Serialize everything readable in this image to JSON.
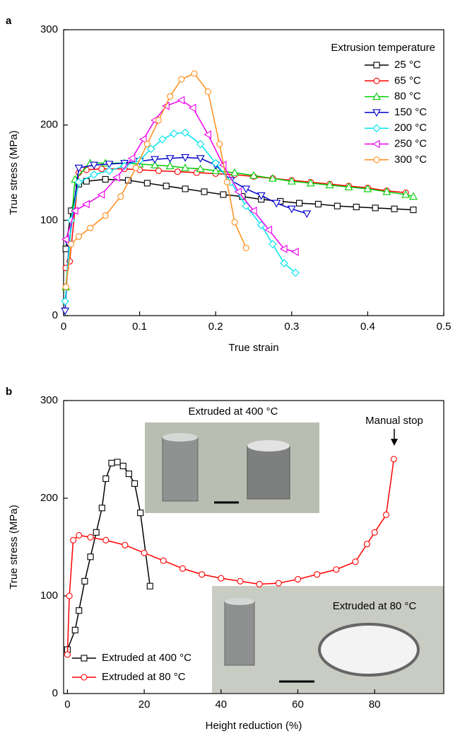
{
  "chart_data": [
    {
      "type": "line",
      "label": "a",
      "xlabel": "True strain",
      "ylabel": "True stress (MPa)",
      "xlim": [
        0,
        0.5
      ],
      "ylim": [
        0,
        300
      ],
      "xticks": [
        0,
        0.1,
        0.2,
        0.3,
        0.4,
        0.5
      ],
      "yticks": [
        0,
        100,
        200,
        300
      ],
      "legend_title": "Extrusion temperature",
      "legend": "upper right",
      "series": [
        {
          "name": "25 °C",
          "color": "#000000",
          "marker": "square",
          "x": [
            0.003,
            0.01,
            0.02,
            0.03,
            0.055,
            0.085,
            0.11,
            0.135,
            0.16,
            0.185,
            0.21,
            0.235,
            0.26,
            0.285,
            0.31,
            0.335,
            0.36,
            0.385,
            0.41,
            0.435,
            0.46
          ],
          "values": [
            70,
            110,
            138,
            141,
            143,
            142,
            139,
            136,
            133,
            130,
            127,
            125,
            122,
            120,
            118,
            117,
            115,
            114,
            113,
            112,
            111
          ]
        },
        {
          "name": "65 °C",
          "color": "#ff0000",
          "marker": "circle",
          "x": [
            0.003,
            0.008,
            0.02,
            0.03,
            0.05,
            0.08,
            0.1,
            0.125,
            0.15,
            0.175,
            0.2,
            0.225,
            0.25,
            0.275,
            0.3,
            0.325,
            0.35,
            0.375,
            0.4,
            0.425,
            0.45
          ],
          "values": [
            50,
            57,
            150,
            153,
            154,
            154,
            153,
            152,
            151,
            150,
            149,
            148,
            146,
            144,
            142,
            140,
            138,
            136,
            134,
            131,
            129
          ]
        },
        {
          "name": "80 °C",
          "color": "#00cc00",
          "marker": "triangle-up",
          "x": [
            0.003,
            0.015,
            0.035,
            0.055,
            0.08,
            0.1,
            0.12,
            0.14,
            0.16,
            0.18,
            0.2,
            0.225,
            0.25,
            0.275,
            0.3,
            0.325,
            0.35,
            0.375,
            0.4,
            0.425,
            0.45,
            0.46
          ],
          "values": [
            30,
            143,
            160,
            160,
            160,
            159,
            158,
            157,
            155,
            154,
            152,
            150,
            147,
            144,
            141,
            139,
            137,
            135,
            133,
            130,
            127,
            125
          ]
        },
        {
          "name": "150 °C",
          "color": "#0000cc",
          "marker": "triangle-down",
          "x": [
            0.002,
            0.007,
            0.02,
            0.04,
            0.06,
            0.08,
            0.1,
            0.12,
            0.14,
            0.16,
            0.18,
            0.2,
            0.22,
            0.24,
            0.26,
            0.28,
            0.3,
            0.32
          ],
          "values": [
            5,
            75,
            155,
            158,
            159,
            160,
            162,
            164,
            165,
            166,
            165,
            158,
            142,
            133,
            126,
            118,
            112,
            107
          ]
        },
        {
          "name": "200 °C",
          "color": "#00e5ee",
          "marker": "diamond",
          "x": [
            0.002,
            0.01,
            0.02,
            0.04,
            0.06,
            0.08,
            0.1,
            0.115,
            0.13,
            0.145,
            0.16,
            0.18,
            0.2,
            0.22,
            0.24,
            0.26,
            0.275,
            0.29,
            0.305
          ],
          "values": [
            15,
            100,
            140,
            148,
            152,
            157,
            163,
            175,
            185,
            191,
            192,
            180,
            160,
            140,
            115,
            95,
            75,
            55,
            45
          ]
        },
        {
          "name": "250 °C",
          "color": "#ee00ee",
          "marker": "triangle-left",
          "x": [
            0.003,
            0.015,
            0.03,
            0.05,
            0.07,
            0.09,
            0.105,
            0.12,
            0.135,
            0.155,
            0.17,
            0.19,
            0.21,
            0.23,
            0.25,
            0.27,
            0.29,
            0.305
          ],
          "values": [
            80,
            110,
            117,
            127,
            145,
            165,
            185,
            205,
            220,
            226,
            218,
            190,
            158,
            130,
            110,
            90,
            70,
            67
          ]
        },
        {
          "name": "300 °C",
          "color": "#ff8c1a",
          "marker": "circle",
          "x": [
            0.003,
            0.01,
            0.02,
            0.035,
            0.055,
            0.075,
            0.095,
            0.11,
            0.125,
            0.14,
            0.155,
            0.172,
            0.19,
            0.205,
            0.215,
            0.225,
            0.24
          ],
          "values": [
            30,
            75,
            83,
            92,
            105,
            125,
            155,
            180,
            205,
            230,
            248,
            254,
            235,
            180,
            140,
            98,
            71
          ]
        }
      ]
    },
    {
      "type": "line",
      "label": "b",
      "xlabel": "Height reduction (%)",
      "ylabel": "True stress (MPa)",
      "xlim": [
        -1,
        98
      ],
      "ylim": [
        0,
        300
      ],
      "xticks": [
        0,
        20,
        40,
        60,
        80
      ],
      "yticks": [
        0,
        100,
        200,
        300
      ],
      "legend": "lower left",
      "annotations": [
        "Extruded at 400 °C",
        "Manual stop",
        "Extruded at 80 °C"
      ],
      "series": [
        {
          "name": "Extruded at 400 °C",
          "color": "#000000",
          "marker": "square",
          "x": [
            0,
            2,
            3,
            4.5,
            6,
            7.5,
            9,
            10,
            11.5,
            13,
            14.5,
            16,
            17.5,
            19,
            21.5
          ],
          "values": [
            45,
            65,
            85,
            115,
            140,
            165,
            190,
            220,
            236,
            237,
            233,
            225,
            215,
            185,
            110
          ]
        },
        {
          "name": "Extruded at 80 °C",
          "color": "#ff0000",
          "marker": "circle",
          "x": [
            0,
            0.5,
            1.5,
            3,
            6,
            10,
            15,
            20,
            25,
            30,
            35,
            40,
            45,
            50,
            55,
            60,
            65,
            70,
            75,
            78,
            80,
            83,
            85
          ],
          "values": [
            40,
            100,
            157,
            162,
            160,
            157,
            152,
            144,
            136,
            128,
            122,
            118,
            115,
            112,
            113,
            117,
            122,
            127,
            135,
            153,
            165,
            183,
            240
          ]
        }
      ]
    }
  ]
}
